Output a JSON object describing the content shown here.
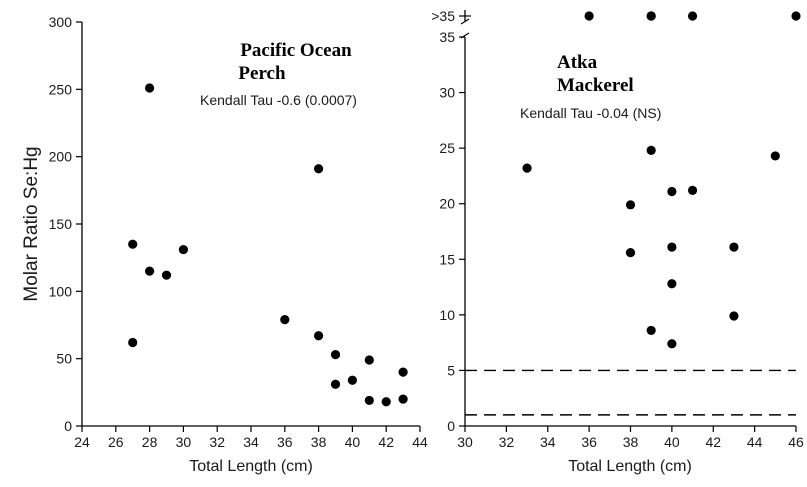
{
  "chart_data": [
    {
      "type": "scatter",
      "title": "Pacific Ocean Perch",
      "title_lines": [
        "Pacific Ocean",
        "Perch"
      ],
      "annotation": "Kendall Tau -0.6 (0.0007)",
      "xlabel": "Total Length (cm)",
      "ylabel": "Molar Ratio Se:Hg",
      "xlim": [
        24,
        44
      ],
      "ylim": [
        0,
        300
      ],
      "x_ticks": [
        24,
        26,
        28,
        30,
        32,
        34,
        36,
        38,
        40,
        42,
        44
      ],
      "y_ticks": [
        0,
        50,
        100,
        150,
        200,
        250,
        300
      ],
      "grid": false,
      "points": [
        {
          "x": 27,
          "y": 135
        },
        {
          "x": 27,
          "y": 62
        },
        {
          "x": 28,
          "y": 251
        },
        {
          "x": 28,
          "y": 115
        },
        {
          "x": 29,
          "y": 112
        },
        {
          "x": 30,
          "y": 131
        },
        {
          "x": 36,
          "y": 79
        },
        {
          "x": 38,
          "y": 191
        },
        {
          "x": 38,
          "y": 67
        },
        {
          "x": 39,
          "y": 53
        },
        {
          "x": 39,
          "y": 31
        },
        {
          "x": 40,
          "y": 34
        },
        {
          "x": 41,
          "y": 49
        },
        {
          "x": 41,
          "y": 19
        },
        {
          "x": 42,
          "y": 18
        },
        {
          "x": 43,
          "y": 40
        },
        {
          "x": 43,
          "y": 20
        }
      ]
    },
    {
      "type": "scatter",
      "title": "Atka Mackerel",
      "title_lines": [
        "Atka",
        "Mackerel"
      ],
      "annotation": "Kendall Tau -0.04 (NS)",
      "xlabel": "Total Length (cm)",
      "ylabel": "",
      "xlim": [
        30,
        46
      ],
      "ylim": [
        0,
        35
      ],
      "x_ticks": [
        30,
        32,
        34,
        36,
        38,
        40,
        42,
        44,
        46
      ],
      "y_ticks": [
        0,
        5,
        10,
        15,
        20,
        25,
        30,
        35
      ],
      "overflow_tick_label": ">35",
      "axis_break": true,
      "grid": false,
      "reference_lines": [
        5,
        1
      ],
      "points": [
        {
          "x": 33,
          "y": 23.2
        },
        {
          "x": 38,
          "y": 19.9
        },
        {
          "x": 38,
          "y": 15.6
        },
        {
          "x": 39,
          "y": 24.8
        },
        {
          "x": 39,
          "y": 8.6
        },
        {
          "x": 40,
          "y": 21.1
        },
        {
          "x": 40,
          "y": 16.1
        },
        {
          "x": 40,
          "y": 12.8
        },
        {
          "x": 40,
          "y": 7.4
        },
        {
          "x": 41,
          "y": 21.2
        },
        {
          "x": 43,
          "y": 16.1
        },
        {
          "x": 43,
          "y": 9.9
        },
        {
          "x": 45,
          "y": 24.3
        }
      ],
      "overflow_points": [
        {
          "x": 36,
          "y": ">35"
        },
        {
          "x": 39,
          "y": ">35"
        },
        {
          "x": 39,
          "y": ">35"
        },
        {
          "x": 41,
          "y": ">35"
        },
        {
          "x": 46,
          "y": ">35"
        }
      ]
    }
  ]
}
